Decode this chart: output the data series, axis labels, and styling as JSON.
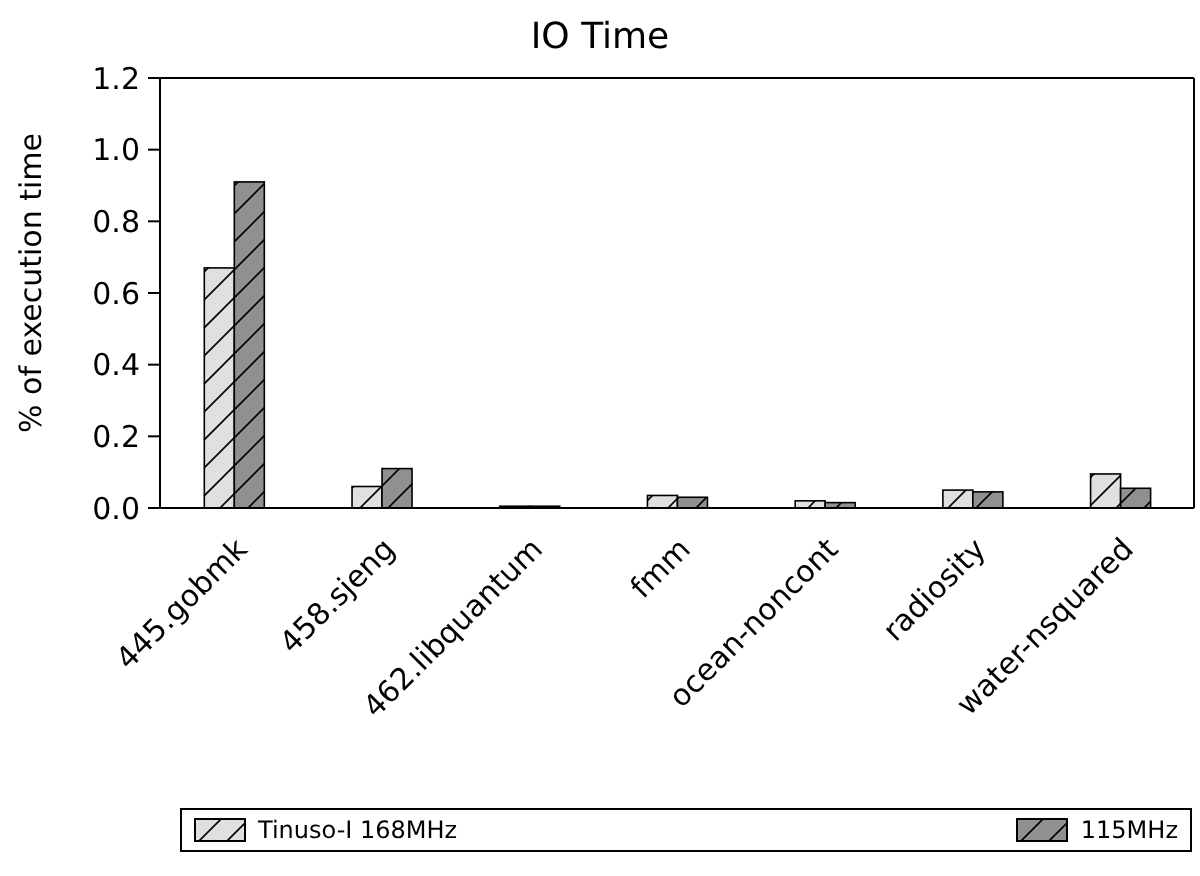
{
  "chart_data": {
    "type": "bar",
    "title": "IO Time",
    "ylabel": "% of execution time",
    "categories": [
      "445.gobmk",
      "458.sjeng",
      "462.libquantum",
      "fmm",
      "ocean-noncont",
      "radiosity",
      "water-nsquared"
    ],
    "series": [
      {
        "name": "Tinuso-I 168MHz",
        "color": "#e0e0e0",
        "values": [
          0.67,
          0.06,
          0.005,
          0.035,
          0.02,
          0.05,
          0.095
        ]
      },
      {
        "name": "115MHz",
        "color": "#909090",
        "values": [
          0.91,
          0.11,
          0.005,
          0.03,
          0.015,
          0.045,
          0.055
        ]
      }
    ],
    "ylim": [
      0,
      1.2
    ],
    "yticks": [
      {
        "value": 0,
        "label": "0.0"
      },
      {
        "value": 0.2,
        "label": "0.2"
      },
      {
        "value": 0.4,
        "label": "0.4"
      },
      {
        "value": 0.6,
        "label": "0.6"
      },
      {
        "value": 0.8,
        "label": "0.8"
      },
      {
        "value": 1,
        "label": "1.0"
      },
      {
        "value": 1.2,
        "label": "1.2"
      }
    ],
    "grid": false,
    "legend": "bottom"
  }
}
